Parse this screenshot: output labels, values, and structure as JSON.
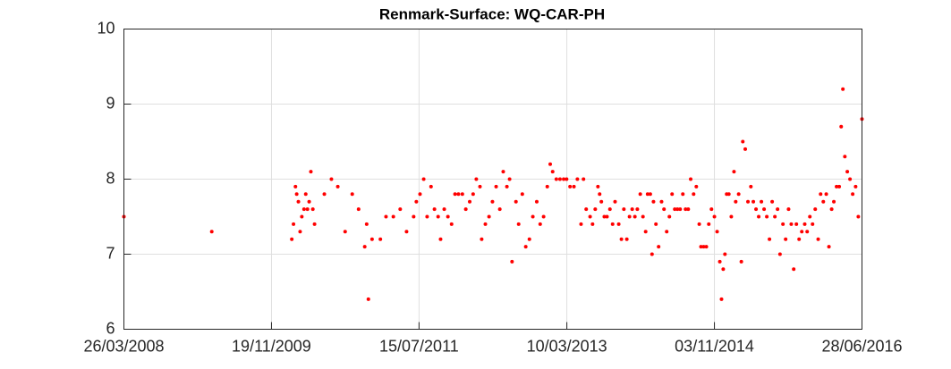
{
  "chart_data": {
    "type": "scatter",
    "title": "Renmark-Surface: WQ-CAR-PH",
    "color": "#ff0000",
    "grid": true,
    "xlim": [
      "26/03/2008",
      "28/06/2016"
    ],
    "xticks": [
      "26/03/2008",
      "19/11/2009",
      "15/07/2011",
      "10/03/2013",
      "03/11/2014",
      "28/06/2016"
    ],
    "ylim": [
      6,
      10
    ],
    "yticks": [
      6,
      7,
      8,
      9,
      10
    ],
    "x": [
      "26/03/2008",
      "20/03/2009",
      "10/02/2010",
      "17/02/2010",
      "25/02/2010",
      "02/03/2010",
      "09/03/2010",
      "16/03/2010",
      "23/03/2010",
      "01/04/2010",
      "08/04/2010",
      "15/04/2010",
      "22/04/2010",
      "29/04/2010",
      "07/05/2010",
      "14/05/2010",
      "23/06/2010",
      "22/07/2010",
      "17/08/2010",
      "16/09/2010",
      "15/10/2010",
      "10/11/2010",
      "05/12/2010",
      "13/12/2010",
      "20/12/2010",
      "04/01/2011",
      "07/02/2011",
      "02/03/2011",
      "01/04/2011",
      "29/04/2011",
      "25/05/2011",
      "23/06/2011",
      "04/07/2011",
      "19/07/2011",
      "03/08/2011",
      "17/08/2011",
      "02/09/2011",
      "16/09/2011",
      "01/10/2011",
      "11/10/2011",
      "26/10/2011",
      "10/11/2011",
      "25/11/2011",
      "09/12/2011",
      "23/12/2011",
      "08/01/2012",
      "22/01/2012",
      "07/02/2012",
      "21/02/2012",
      "05/03/2012",
      "20/03/2012",
      "27/03/2012",
      "11/04/2012",
      "26/04/2012",
      "10/05/2012",
      "25/05/2012",
      "09/06/2012",
      "23/06/2012",
      "08/07/2012",
      "19/07/2012",
      "29/07/2012",
      "14/08/2012",
      "25/08/2012",
      "09/09/2012",
      "23/09/2012",
      "08/10/2012",
      "22/10/2012",
      "07/11/2012",
      "21/11/2012",
      "05/12/2012",
      "20/12/2012",
      "01/01/2013",
      "11/01/2013",
      "26/01/2013",
      "10/02/2013",
      "25/02/2013",
      "09/03/2013",
      "23/03/2013",
      "08/04/2013",
      "22/04/2013",
      "07/05/2013",
      "17/05/2013",
      "28/05/2013",
      "13/06/2013",
      "23/06/2013",
      "04/07/2013",
      "15/07/2013",
      "22/07/2013",
      "29/07/2013",
      "10/08/2013",
      "21/08/2013",
      "02/09/2013",
      "13/09/2013",
      "23/09/2013",
      "08/10/2013",
      "19/10/2013",
      "29/10/2013",
      "10/11/2013",
      "21/11/2013",
      "02/12/2013",
      "13/12/2013",
      "23/12/2013",
      "04/01/2014",
      "15/01/2014",
      "26/01/2014",
      "03/02/2014",
      "14/02/2014",
      "21/02/2014",
      "27/02/2014",
      "09/03/2014",
      "20/03/2014",
      "01/04/2014",
      "11/04/2014",
      "22/04/2014",
      "03/05/2014",
      "14/05/2014",
      "25/05/2014",
      "05/06/2014",
      "16/06/2014",
      "27/06/2014",
      "08/07/2014",
      "19/07/2014",
      "29/07/2014",
      "10/08/2014",
      "21/08/2014",
      "02/09/2014",
      "09/09/2014",
      "20/09/2014",
      "01/10/2014",
      "11/10/2014",
      "22/10/2014",
      "03/11/2014",
      "14/11/2014",
      "25/11/2014",
      "02/12/2014",
      "09/12/2014",
      "16/12/2014",
      "23/12/2014",
      "01/01/2015",
      "11/01/2015",
      "22/01/2015",
      "29/01/2015",
      "10/02/2015",
      "21/02/2015",
      "27/02/2015",
      "09/03/2015",
      "20/03/2015",
      "01/04/2015",
      "11/04/2015",
      "22/04/2015",
      "03/05/2015",
      "14/05/2015",
      "25/05/2015",
      "05/06/2015",
      "16/06/2015",
      "27/06/2015",
      "08/07/2015",
      "19/07/2015",
      "29/07/2015",
      "10/08/2015",
      "21/08/2015",
      "02/09/2015",
      "13/09/2015",
      "23/09/2015",
      "04/10/2015",
      "15/10/2015",
      "26/10/2015",
      "07/11/2015",
      "17/11/2015",
      "28/11/2015",
      "09/12/2015",
      "20/12/2015",
      "01/01/2016",
      "11/01/2016",
      "22/01/2016",
      "03/02/2016",
      "14/02/2016",
      "25/02/2016",
      "05/03/2016",
      "16/03/2016",
      "27/03/2016",
      "04/04/2016",
      "11/04/2016",
      "19/04/2016",
      "29/04/2016",
      "10/05/2016",
      "21/05/2016",
      "02/06/2016",
      "13/06/2016",
      "28/06/2016"
    ],
    "values": [
      7.5,
      7.3,
      7.2,
      7.4,
      7.9,
      7.8,
      7.7,
      7.3,
      7.5,
      7.6,
      7.8,
      7.6,
      7.7,
      8.1,
      7.6,
      7.4,
      7.8,
      8.0,
      7.9,
      7.3,
      7.8,
      7.6,
      7.1,
      7.4,
      6.4,
      7.2,
      7.2,
      7.5,
      7.5,
      7.6,
      7.3,
      7.5,
      7.7,
      7.8,
      8.0,
      7.5,
      7.9,
      7.6,
      7.5,
      7.2,
      7.6,
      7.5,
      7.4,
      7.8,
      7.8,
      7.8,
      7.6,
      7.7,
      7.8,
      8.0,
      7.9,
      7.2,
      7.4,
      7.5,
      7.7,
      7.9,
      7.6,
      8.1,
      7.9,
      8.0,
      6.9,
      7.7,
      7.4,
      7.8,
      7.1,
      7.2,
      7.5,
      7.7,
      7.4,
      7.5,
      7.9,
      8.2,
      8.1,
      8.0,
      8.0,
      8.0,
      8.0,
      7.9,
      7.9,
      8.0,
      7.4,
      8.0,
      7.6,
      7.5,
      7.4,
      7.6,
      7.9,
      7.8,
      7.7,
      7.5,
      7.5,
      7.6,
      7.4,
      7.7,
      7.4,
      7.2,
      7.6,
      7.2,
      7.5,
      7.6,
      7.5,
      7.6,
      7.8,
      7.5,
      7.3,
      7.8,
      7.8,
      7.0,
      7.7,
      7.4,
      7.1,
      7.7,
      7.6,
      7.3,
      7.5,
      7.8,
      7.6,
      7.6,
      7.6,
      7.8,
      7.6,
      7.6,
      8.0,
      7.8,
      7.9,
      7.4,
      7.1,
      7.1,
      7.1,
      7.4,
      7.6,
      7.5,
      7.3,
      6.9,
      6.4,
      6.8,
      7.0,
      7.8,
      7.8,
      7.5,
      8.1,
      7.7,
      7.8,
      6.9,
      8.5,
      8.4,
      7.7,
      7.9,
      7.7,
      7.6,
      7.5,
      7.7,
      7.6,
      7.5,
      7.2,
      7.7,
      7.5,
      7.6,
      7.0,
      7.4,
      7.2,
      7.6,
      7.4,
      6.8,
      7.4,
      7.2,
      7.3,
      7.4,
      7.3,
      7.5,
      7.4,
      7.6,
      7.2,
      7.8,
      7.7,
      7.8,
      7.1,
      7.6,
      7.7,
      7.9,
      7.9,
      8.7,
      9.2,
      8.3,
      8.1,
      8.0,
      7.8,
      7.9,
      7.5,
      8.8
    ]
  }
}
